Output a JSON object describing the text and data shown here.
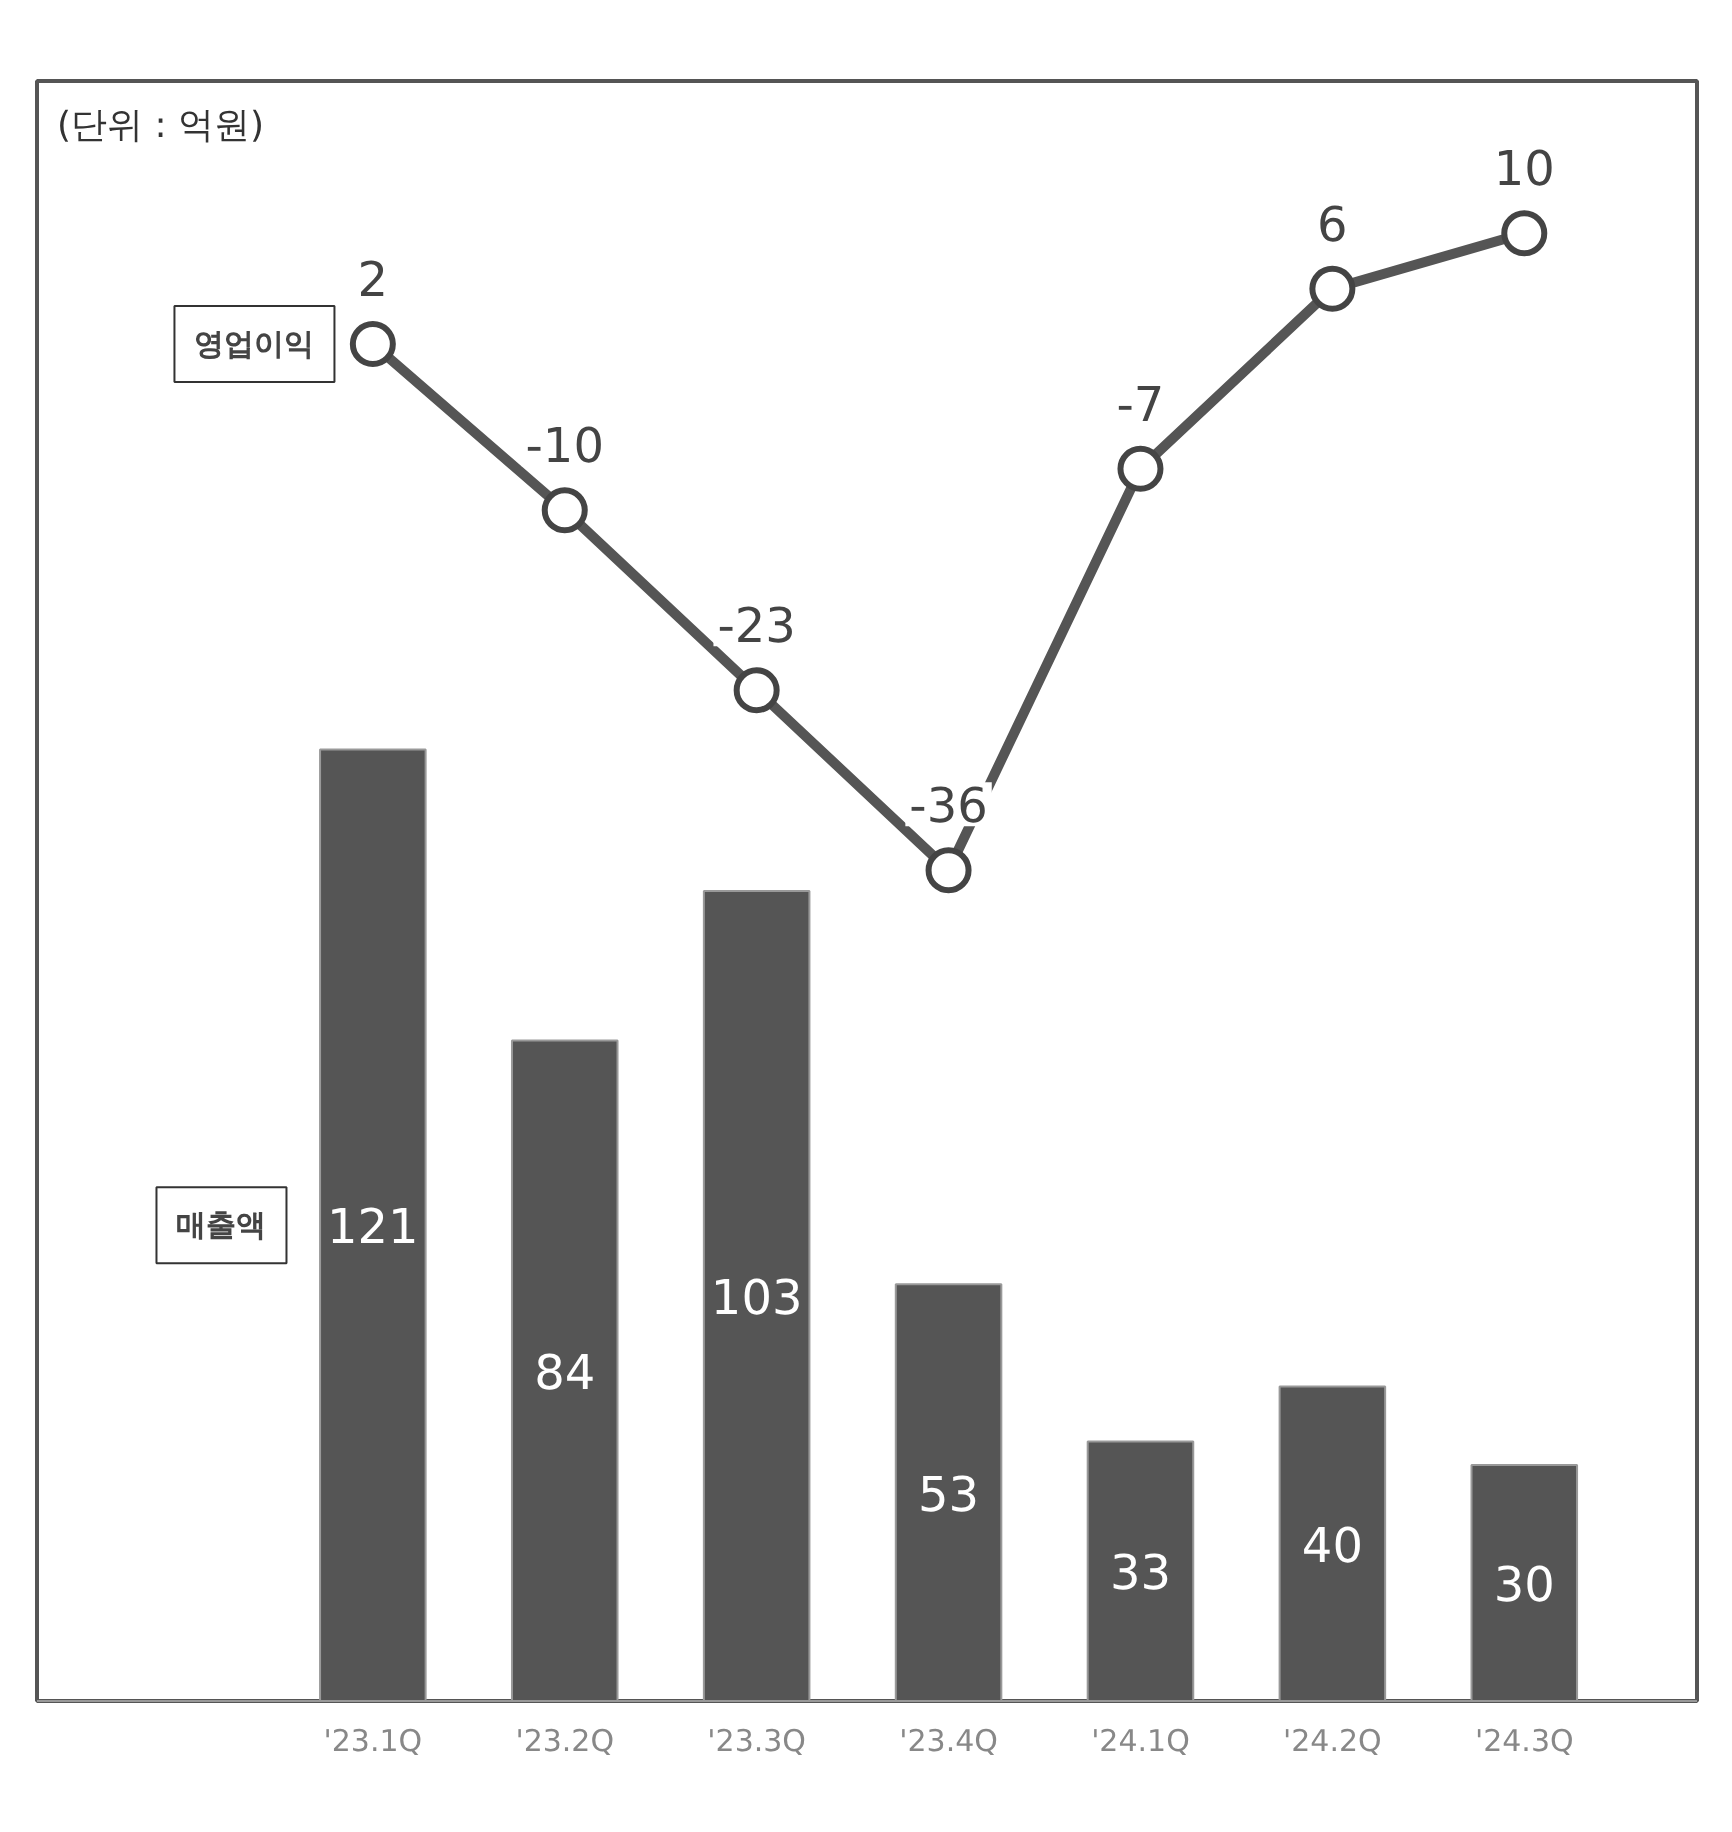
{
  "chart_data": {
    "type": "bar",
    "categories": [
      "'23.1Q",
      "'23.2Q",
      "'23.3Q",
      "'23.4Q",
      "'24.1Q",
      "'24.2Q",
      "'24.3Q"
    ],
    "series": [
      {
        "name": "매출액",
        "color": "#555555",
        "values": [
          121,
          84,
          103,
          53,
          33,
          40,
          30
        ]
      },
      {
        "name": "영업이익",
        "type": "line",
        "axis": "y2",
        "color": "#555555",
        "values": [
          2,
          -10,
          -23,
          -36,
          -7,
          6,
          10
        ]
      }
    ],
    "ylim": [
      0,
      206
    ],
    "y2lim": [
      -96,
      21
    ],
    "data_labels": true,
    "tick_labels": "x",
    "marker": "circle",
    "line_style": "solid",
    "grid": false,
    "annotations": [
      "(단위 : 억원)"
    ]
  }
}
